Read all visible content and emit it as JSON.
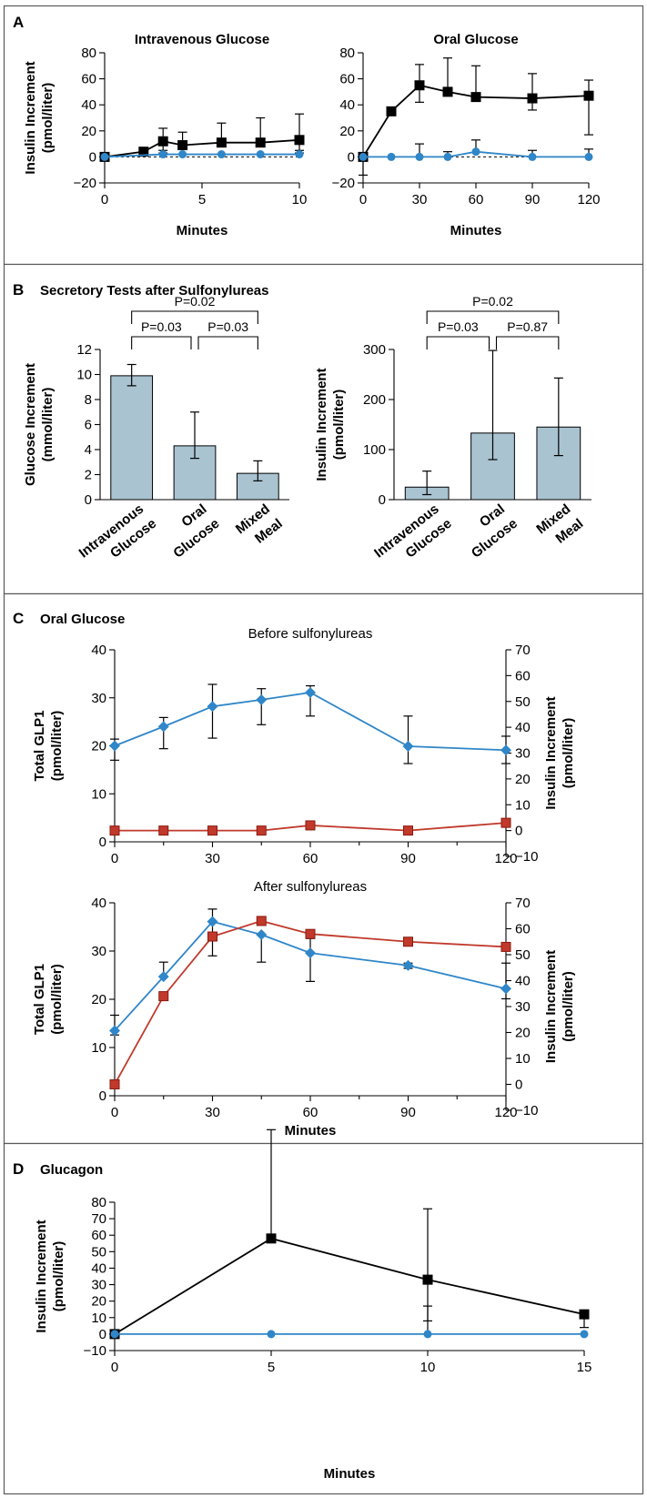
{
  "colors": {
    "black_series": "#000000",
    "blue_series": "#2f86c8",
    "red_series": "#c0392b",
    "bar_fill": "#a9c3d1"
  },
  "panels": {
    "A": {
      "label": "A"
    },
    "B": {
      "label": "B",
      "title": "Secretory Tests after Sulfonylureas"
    },
    "C": {
      "label": "C",
      "title": "Oral Glucose"
    },
    "D": {
      "label": "D",
      "title": "Glucagon"
    }
  },
  "chart_data": [
    {
      "id": "A-iv",
      "type": "line",
      "title": "Intravenous Glucose",
      "xlabel": "Minutes",
      "ylabel": [
        "Insulin Increment",
        "(pmol/liter)"
      ],
      "xlim": [
        0,
        10
      ],
      "ylim": [
        -20,
        80
      ],
      "xticks": [
        "0",
        "5",
        "10"
      ],
      "xtickvals": [
        0,
        5,
        10
      ],
      "yticks": [
        "−20",
        "0",
        "20",
        "40",
        "60",
        "80"
      ],
      "ytickvals": [
        -20,
        0,
        20,
        40,
        60,
        80
      ],
      "zero_line": "dashed",
      "series": [
        {
          "color": "#000000",
          "marker": "square",
          "x": [
            0,
            2,
            3,
            4,
            6,
            8,
            10
          ],
          "y": [
            0,
            4,
            12,
            9,
            11,
            11,
            13
          ],
          "err_hi": [
            0,
            2,
            10,
            10,
            15,
            19,
            20
          ],
          "err_lo": [
            0,
            0,
            7,
            0,
            0,
            0,
            10
          ]
        },
        {
          "color": "#2f86c8",
          "marker": "circle",
          "x": [
            0,
            3,
            4,
            6,
            8,
            10
          ],
          "y": [
            0,
            2,
            2,
            2,
            2,
            2
          ],
          "err_hi": [
            0,
            1,
            0,
            0,
            0,
            3
          ],
          "err_lo": [
            0,
            0,
            0,
            0,
            0,
            0
          ]
        }
      ]
    },
    {
      "id": "A-oral",
      "type": "line",
      "title": "Oral Glucose",
      "xlabel": "Minutes",
      "ylabel": [],
      "xlim": [
        0,
        120
      ],
      "ylim": [
        -20,
        80
      ],
      "xticks": [
        "0",
        "30",
        "60",
        "90",
        "120"
      ],
      "xtickvals": [
        0,
        30,
        60,
        90,
        120
      ],
      "yticks": [
        "−20",
        "0",
        "20",
        "40",
        "60",
        "80"
      ],
      "ytickvals": [
        -20,
        0,
        20,
        40,
        60,
        80
      ],
      "zero_line": "dashed",
      "series": [
        {
          "color": "#000000",
          "marker": "square",
          "x": [
            0,
            15,
            30,
            45,
            60,
            90,
            120
          ],
          "y": [
            0,
            35,
            55,
            50,
            46,
            45,
            47
          ],
          "err_hi": [
            0,
            0,
            16,
            26,
            24,
            19,
            12
          ],
          "err_lo": [
            14,
            0,
            13,
            0,
            0,
            9,
            30
          ]
        },
        {
          "color": "#2f86c8",
          "marker": "circle",
          "x": [
            0,
            15,
            30,
            45,
            60,
            90,
            120
          ],
          "y": [
            0,
            0,
            0,
            0,
            4,
            0,
            0
          ],
          "err_hi": [
            0,
            0,
            10,
            4,
            9,
            5,
            6
          ],
          "err_lo": [
            0,
            0,
            0,
            0,
            0,
            0,
            0
          ]
        }
      ]
    },
    {
      "id": "B-glucose",
      "type": "bar",
      "ylabel": [
        "Glucose Increment",
        "(mmol/liter)"
      ],
      "ylim": [
        0,
        12
      ],
      "yticks": [
        "0",
        "2",
        "4",
        "6",
        "8",
        "10",
        "12"
      ],
      "ytickvals": [
        0,
        2,
        4,
        6,
        8,
        10,
        12
      ],
      "categories": [
        [
          "Intravenous",
          "Glucose"
        ],
        [
          "Oral",
          "Glucose"
        ],
        [
          "Mixed",
          "Meal"
        ]
      ],
      "values": [
        9.9,
        4.3,
        2.1
      ],
      "err_hi": [
        10.8,
        7.0,
        3.1
      ],
      "err_lo": [
        9.1,
        3.3,
        1.5
      ],
      "comparisons": [
        {
          "label": "P=0.02",
          "from": 0,
          "to": 2,
          "level": 2
        },
        {
          "label": "P=0.03",
          "from": 0,
          "to": 1,
          "level": 1
        },
        {
          "label": "P=0.03",
          "from": 1,
          "to": 2,
          "level": 1
        }
      ]
    },
    {
      "id": "B-insulin",
      "type": "bar",
      "ylabel": [
        "Insulin Increment",
        "(pmol/liter)"
      ],
      "ylim": [
        0,
        300
      ],
      "yticks": [
        "0",
        "100",
        "200",
        "300"
      ],
      "ytickvals": [
        0,
        100,
        200,
        300
      ],
      "categories": [
        [
          "Intravenous",
          "Glucose"
        ],
        [
          "Oral",
          "Glucose"
        ],
        [
          "Mixed",
          "Meal"
        ]
      ],
      "values": [
        25,
        133,
        145
      ],
      "err_hi": [
        57,
        298,
        243
      ],
      "err_lo": [
        10,
        80,
        88
      ],
      "comparisons": [
        {
          "label": "P=0.02",
          "from": 0,
          "to": 2,
          "level": 2
        },
        {
          "label": "P=0.03",
          "from": 0,
          "to": 1,
          "level": 1
        },
        {
          "label": "P=0.87",
          "from": 1,
          "to": 2,
          "level": 1
        }
      ]
    },
    {
      "id": "C-before",
      "type": "line",
      "subtitle": "Before sulfonylureas",
      "ylabel": [
        "Total GLP1",
        "(pmol/liter)"
      ],
      "y2label": [
        "Insulin Increment",
        "(pmol/liter)"
      ],
      "xlim": [
        0,
        120
      ],
      "ylim": [
        0,
        40
      ],
      "y2lim": [
        -10,
        70
      ],
      "xticks": [
        "0",
        "30",
        "60",
        "90",
        "120"
      ],
      "xtickvals": [
        0,
        30,
        60,
        90,
        120
      ],
      "yticks": [
        "0",
        "10",
        "20",
        "30",
        "40"
      ],
      "ytickvals": [
        0,
        10,
        20,
        30,
        40
      ],
      "y2ticks": [
        "−10",
        "0",
        "10",
        "20",
        "30",
        "40",
        "50",
        "60",
        "70"
      ],
      "y2tickvals": [
        -10,
        0,
        10,
        20,
        30,
        40,
        50,
        60,
        70
      ],
      "series": [
        {
          "color": "#2f86c8",
          "marker": "diamond",
          "axis": "left",
          "x": [
            0,
            15,
            30,
            45,
            60,
            90,
            120
          ],
          "y": [
            20,
            24,
            28.2,
            29.6,
            31.1,
            19.9,
            19.1
          ],
          "err_hi": [
            21.4,
            25.9,
            32.8,
            31.9,
            32.5,
            26.2,
            22
          ],
          "err_lo": [
            17,
            19.4,
            21.6,
            24.4,
            26.2,
            16.3,
            16.3
          ]
        },
        {
          "color": "#c0392b",
          "marker": "square",
          "axis": "right",
          "x": [
            0,
            15,
            30,
            45,
            60,
            90,
            120
          ],
          "y": [
            0,
            0,
            0,
            0,
            2,
            0,
            3
          ],
          "err_hi": [
            0,
            0,
            0,
            0,
            0,
            0,
            0
          ],
          "err_lo": [
            0,
            0,
            0,
            0,
            0,
            0,
            0
          ]
        }
      ]
    },
    {
      "id": "C-after",
      "type": "line",
      "subtitle": "After sulfonylureas",
      "xlabel": "Minutes",
      "ylabel": [
        "Total GLP1",
        "(pmol/liter)"
      ],
      "y2label": [
        "Insulin Increment",
        "(pmol/liter)"
      ],
      "xlim": [
        0,
        120
      ],
      "ylim": [
        0,
        40
      ],
      "y2lim": [
        -10,
        70
      ],
      "xticks": [
        "0",
        "30",
        "60",
        "90",
        "120"
      ],
      "xtickvals": [
        0,
        30,
        60,
        90,
        120
      ],
      "yticks": [
        "0",
        "10",
        "20",
        "30",
        "40"
      ],
      "ytickvals": [
        0,
        10,
        20,
        30,
        40
      ],
      "y2ticks": [
        "−10",
        "0",
        "10",
        "20",
        "30",
        "40",
        "50",
        "60",
        "70"
      ],
      "y2tickvals": [
        -10,
        0,
        10,
        20,
        30,
        40,
        50,
        60,
        70
      ],
      "series": [
        {
          "color": "#2f86c8",
          "marker": "diamond",
          "axis": "left",
          "x": [
            0,
            15,
            30,
            45,
            60,
            90,
            120
          ],
          "y": [
            13.5,
            24.7,
            36.1,
            33.4,
            29.6,
            27,
            22.2
          ],
          "err_hi": [
            16.7,
            27.7,
            38.7,
            0,
            32.6,
            27.5,
            27.5
          ],
          "err_lo": [
            12.6,
            0,
            29,
            27.7,
            23.7,
            26.4,
            20.1
          ]
        },
        {
          "color": "#c0392b",
          "marker": "square",
          "axis": "right",
          "x": [
            0,
            15,
            30,
            45,
            60,
            90,
            120
          ],
          "y": [
            0,
            34,
            57,
            63,
            58,
            55,
            53
          ],
          "err_hi": [
            0,
            0,
            0,
            0,
            0,
            0,
            0
          ],
          "err_lo": [
            0,
            0,
            0,
            0,
            0,
            0,
            0
          ]
        }
      ]
    },
    {
      "id": "D-glucagon",
      "type": "line",
      "xlabel": "Minutes",
      "ylabel": [
        "Insulin Increment",
        "(pmol/liter)"
      ],
      "xlim": [
        0,
        15
      ],
      "ylim": [
        -10,
        80
      ],
      "xticks": [
        "0",
        "5",
        "10",
        "15"
      ],
      "xtickvals": [
        0,
        5,
        10,
        15
      ],
      "yticks": [
        "−10",
        "0",
        "10",
        "20",
        "30",
        "40",
        "50",
        "60",
        "70",
        "80"
      ],
      "ytickvals": [
        -10,
        0,
        10,
        20,
        30,
        40,
        50,
        60,
        70,
        80
      ],
      "zero_line": "dashed",
      "series": [
        {
          "color": "#000000",
          "marker": "square",
          "x": [
            0,
            5,
            10,
            15
          ],
          "y": [
            0,
            58,
            33,
            12
          ],
          "err_hi": [
            0,
            66,
            43,
            0
          ],
          "err_lo": [
            0,
            0,
            25,
            8
          ]
        },
        {
          "color": "#2f86c8",
          "marker": "circle",
          "x": [
            0,
            5,
            10,
            15
          ],
          "y": [
            0,
            0,
            0,
            0
          ],
          "err_hi": [
            0,
            0,
            17,
            0
          ],
          "err_lo": [
            0,
            0,
            0,
            0
          ]
        }
      ]
    }
  ]
}
